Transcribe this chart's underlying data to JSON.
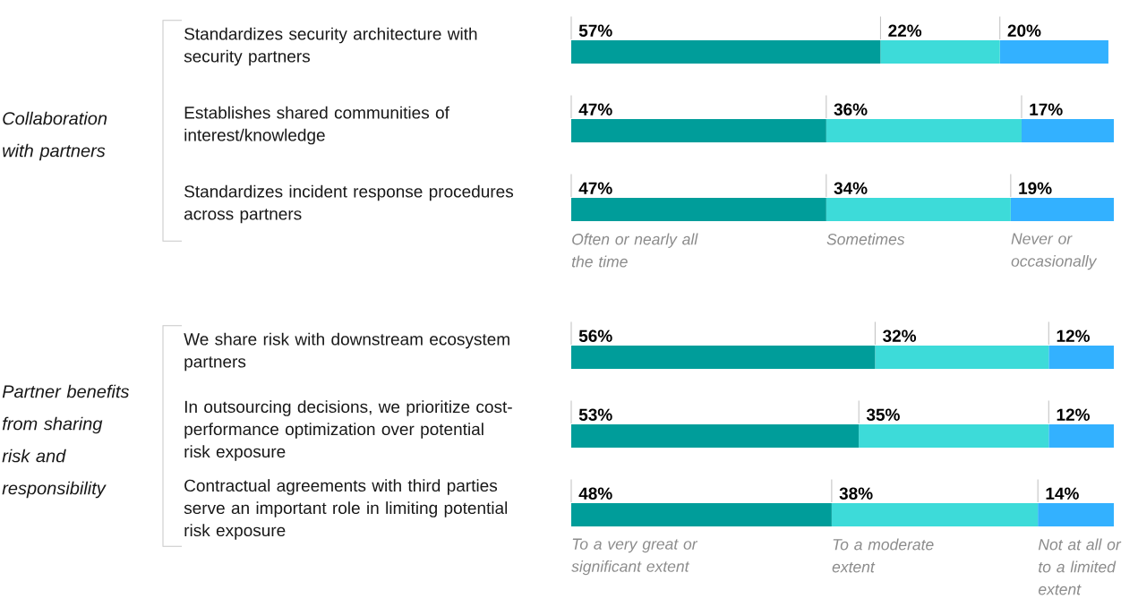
{
  "chart_data": [
    {
      "type": "bar",
      "orientation": "horizontal",
      "stacked": true,
      "title": "Collaboration with partners",
      "legend": "bottom",
      "categories": [
        "Standardizes security architecture with security partners",
        "Establishes shared communities of interest/knowledge",
        "Standardizes incident response procedures across partners"
      ],
      "series": [
        {
          "name": "Often or nearly all the time",
          "color": "#009d9a",
          "values": [
            57,
            47,
            47
          ],
          "value_labels": [
            "57%",
            "47%",
            "47%"
          ]
        },
        {
          "name": "Sometimes",
          "color": "#3ddbd9",
          "values": [
            22,
            36,
            34
          ],
          "value_labels": [
            "22%",
            "36%",
            "34%"
          ]
        },
        {
          "name": "Never or occasionally",
          "color": "#33b1ff",
          "values": [
            20,
            17,
            19
          ],
          "value_labels": [
            "20%",
            "17%",
            "19%"
          ]
        }
      ]
    },
    {
      "type": "bar",
      "orientation": "horizontal",
      "stacked": true,
      "title": "Partner benefits from sharing risk and responsibility",
      "legend": "bottom",
      "categories": [
        "We share risk with downstream ecosystem partners",
        "In outsourcing decisions, we prioritize cost-performance optimization over potential risk exposure",
        "Contractual agreements with third parties serve an important role in limiting potential risk exposure"
      ],
      "series": [
        {
          "name": "To a very great or significant extent",
          "color": "#009d9a",
          "values": [
            56,
            53,
            48
          ],
          "value_labels": [
            "56%",
            "53%",
            "48%"
          ]
        },
        {
          "name": "To a moderate extent",
          "color": "#3ddbd9",
          "values": [
            32,
            35,
            38
          ],
          "value_labels": [
            "32%",
            "35%",
            "38%"
          ]
        },
        {
          "name": "Not at all or to a limited extent",
          "color": "#33b1ff",
          "values": [
            12,
            12,
            14
          ],
          "value_labels": [
            "12%",
            "12%",
            "14%"
          ]
        }
      ]
    }
  ]
}
